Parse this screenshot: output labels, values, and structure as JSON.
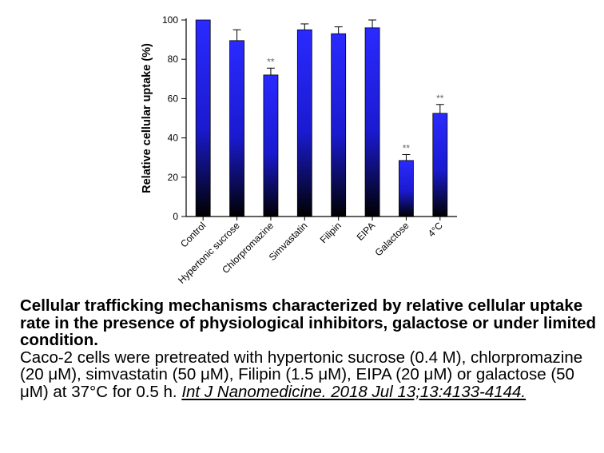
{
  "chart_data": {
    "type": "bar",
    "categories": [
      "Control",
      "Hypertonic sucrose",
      "Chlorpromazine",
      "Simvastatin",
      "Filipin",
      "EIPA",
      "Galactose",
      "4°C"
    ],
    "values": [
      100,
      89.5,
      72,
      95,
      93,
      96,
      28.5,
      52.5
    ],
    "errors": [
      0,
      5.5,
      3.5,
      3,
      3.5,
      4,
      3,
      4.5
    ],
    "significance": [
      "",
      "",
      "**",
      "",
      "",
      "",
      "**",
      "**"
    ],
    "ylabel": "Relative cellular uptake (%)",
    "yticks": [
      0,
      20,
      40,
      60,
      80,
      100
    ],
    "ylim": [
      0,
      100
    ],
    "grid": false,
    "bar_gradient": [
      "#2a2aff",
      "#000000"
    ]
  },
  "caption": {
    "title": "Cellular trafficking mechanisms characterized by relative cellular uptake rate in the presence of physiological inhibitors, galactose or under limited condition.",
    "body": "Caco-2 cells were pretreated with hypertonic sucrose (0.4 M), chlorpromazine (20 μM), simvastatin (50 μM), Filipin (1.5 μM), EIPA (20 μM) or galactose (50 μM) at 37°C for 0.5 h.",
    "citation": "Int J Nanomedicine. 2018 Jul 13;13:4133-4144."
  }
}
